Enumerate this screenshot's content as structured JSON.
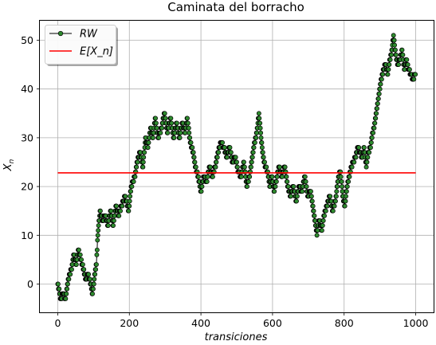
{
  "chart_data": {
    "type": "line",
    "title": "Caminata del borracho",
    "xlabel": "transiciones",
    "ylabel": "X_n",
    "xlim": [
      -50,
      1050
    ],
    "ylim": [
      -5.8,
      54
    ],
    "xticks": [
      0,
      200,
      400,
      600,
      800,
      1000
    ],
    "yticks": [
      0,
      10,
      20,
      30,
      40,
      50
    ],
    "grid": true,
    "legend_position": "top-left",
    "series": [
      {
        "name": "RW",
        "style": "line-with-circle-markers",
        "line_color": "#000000",
        "marker_face_color": "#2e8b2e",
        "marker_edge_color": "#000000",
        "anchors": [
          [
            0,
            0
          ],
          [
            8,
            -3
          ],
          [
            15,
            -2
          ],
          [
            22,
            -3
          ],
          [
            30,
            1
          ],
          [
            38,
            3
          ],
          [
            45,
            6
          ],
          [
            52,
            4
          ],
          [
            58,
            7
          ],
          [
            65,
            5
          ],
          [
            72,
            3
          ],
          [
            78,
            1
          ],
          [
            85,
            2
          ],
          [
            92,
            0
          ],
          [
            97,
            -2
          ],
          [
            102,
            1
          ],
          [
            108,
            4
          ],
          [
            112,
            10
          ],
          [
            118,
            15
          ],
          [
            125,
            13
          ],
          [
            132,
            14
          ],
          [
            140,
            12
          ],
          [
            148,
            15
          ],
          [
            155,
            12
          ],
          [
            162,
            16
          ],
          [
            170,
            14
          ],
          [
            178,
            16
          ],
          [
            188,
            18
          ],
          [
            198,
            15
          ],
          [
            205,
            20
          ],
          [
            215,
            22
          ],
          [
            222,
            25
          ],
          [
            230,
            27
          ],
          [
            238,
            24
          ],
          [
            245,
            30
          ],
          [
            252,
            28
          ],
          [
            260,
            32
          ],
          [
            266,
            30
          ],
          [
            272,
            34
          ],
          [
            280,
            30
          ],
          [
            290,
            32
          ],
          [
            298,
            35
          ],
          [
            306,
            31
          ],
          [
            315,
            34
          ],
          [
            324,
            30
          ],
          [
            332,
            33
          ],
          [
            340,
            30
          ],
          [
            348,
            33
          ],
          [
            356,
            31
          ],
          [
            362,
            34
          ],
          [
            370,
            29
          ],
          [
            378,
            27
          ],
          [
            385,
            24
          ],
          [
            392,
            22
          ],
          [
            400,
            19
          ],
          [
            408,
            22
          ],
          [
            416,
            21
          ],
          [
            424,
            24
          ],
          [
            432,
            22
          ],
          [
            440,
            24
          ],
          [
            448,
            27
          ],
          [
            456,
            29
          ],
          [
            464,
            28
          ],
          [
            472,
            26
          ],
          [
            480,
            28
          ],
          [
            488,
            25
          ],
          [
            496,
            26
          ],
          [
            504,
            23
          ],
          [
            512,
            22
          ],
          [
            520,
            25
          ],
          [
            528,
            20
          ],
          [
            536,
            22
          ],
          [
            544,
            26
          ],
          [
            550,
            29
          ],
          [
            556,
            31
          ],
          [
            562,
            35
          ],
          [
            568,
            30
          ],
          [
            574,
            26
          ],
          [
            580,
            24
          ],
          [
            586,
            23
          ],
          [
            592,
            20
          ],
          [
            598,
            22
          ],
          [
            604,
            19
          ],
          [
            610,
            21
          ],
          [
            618,
            24
          ],
          [
            626,
            22
          ],
          [
            634,
            24
          ],
          [
            642,
            20
          ],
          [
            650,
            18
          ],
          [
            658,
            20
          ],
          [
            666,
            17
          ],
          [
            674,
            20
          ],
          [
            682,
            19
          ],
          [
            690,
            22
          ],
          [
            698,
            18
          ],
          [
            706,
            19
          ],
          [
            712,
            16
          ],
          [
            718,
            13
          ],
          [
            724,
            10
          ],
          [
            730,
            13
          ],
          [
            738,
            11
          ],
          [
            744,
            14
          ],
          [
            752,
            16
          ],
          [
            760,
            18
          ],
          [
            768,
            15
          ],
          [
            776,
            17
          ],
          [
            784,
            22
          ],
          [
            790,
            23
          ],
          [
            796,
            18
          ],
          [
            802,
            16
          ],
          [
            808,
            20
          ],
          [
            814,
            22
          ],
          [
            820,
            24
          ],
          [
            826,
            25
          ],
          [
            832,
            26
          ],
          [
            838,
            28
          ],
          [
            844,
            27
          ],
          [
            850,
            26
          ],
          [
            856,
            28
          ],
          [
            862,
            24
          ],
          [
            868,
            27
          ],
          [
            874,
            28
          ],
          [
            880,
            31
          ],
          [
            886,
            33
          ],
          [
            892,
            36
          ],
          [
            898,
            39
          ],
          [
            904,
            42
          ],
          [
            910,
            44
          ],
          [
            916,
            45
          ],
          [
            922,
            43
          ],
          [
            928,
            46
          ],
          [
            934,
            48
          ],
          [
            938,
            51
          ],
          [
            944,
            47
          ],
          [
            950,
            45
          ],
          [
            956,
            46
          ],
          [
            962,
            48
          ],
          [
            968,
            44
          ],
          [
            974,
            46
          ],
          [
            980,
            44
          ],
          [
            986,
            43
          ],
          [
            992,
            42
          ],
          [
            999,
            43
          ]
        ]
      },
      {
        "name": "E[X_n]",
        "style": "line",
        "line_color": "#ff0000",
        "x": [
          0,
          1000
        ],
        "values": [
          22.8,
          22.8
        ]
      }
    ]
  }
}
